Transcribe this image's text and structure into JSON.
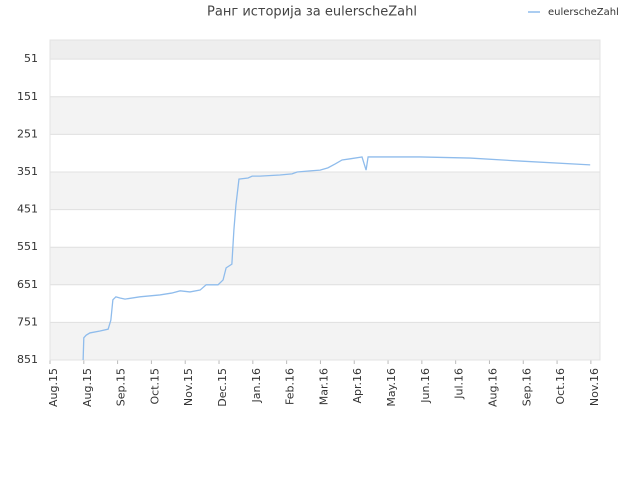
{
  "chart_data": {
    "type": "line",
    "title": "Ранг историја за eulerscheZahl",
    "x": [
      0.98,
      1.0,
      1.07,
      1.18,
      1.48,
      1.72,
      1.8,
      1.86,
      1.95,
      2.07,
      2.22,
      2.66,
      3.25,
      3.6,
      3.85,
      4.14,
      4.44,
      4.62,
      4.97,
      5.12,
      5.21,
      5.38,
      5.44,
      5.5,
      5.59,
      5.86,
      5.98,
      6.21,
      6.8,
      7.16,
      7.31,
      7.69,
      7.99,
      8.22,
      8.43,
      8.64,
      8.88,
      9.23,
      9.35,
      9.41,
      10.95,
      12.43,
      13.91,
      15.98
    ],
    "series": [
      {
        "name": "eulerscheZahl",
        "color": "#8fbcec",
        "values": [
          851,
          792,
          785,
          779,
          774,
          769,
          745,
          691,
          683,
          686,
          689,
          683,
          678,
          673,
          667,
          670,
          665,
          651,
          651,
          638,
          606,
          596,
          505,
          439,
          370,
          367,
          362,
          362,
          359,
          356,
          351,
          348,
          346,
          340,
          330,
          319,
          316,
          311,
          346,
          311,
          311,
          314,
          322,
          332
        ]
      }
    ],
    "xlim": [
      0,
      16.27
    ],
    "xticks": [
      {
        "value": 0,
        "label": "Aug.15"
      },
      {
        "value": 1,
        "label": "Aug.15"
      },
      {
        "value": 2,
        "label": "Sep.15"
      },
      {
        "value": 3,
        "label": "Oct.15"
      },
      {
        "value": 4,
        "label": "Nov.15"
      },
      {
        "value": 5,
        "label": "Dec.15"
      },
      {
        "value": 6,
        "label": "Jan.16"
      },
      {
        "value": 7,
        "label": "Feb.16"
      },
      {
        "value": 8,
        "label": "Mar.16"
      },
      {
        "value": 9,
        "label": "Apr.16"
      },
      {
        "value": 10,
        "label": "May.16"
      },
      {
        "value": 11,
        "label": "Jun.16"
      },
      {
        "value": 12,
        "label": "Jul.16"
      },
      {
        "value": 13,
        "label": "Aug.16"
      },
      {
        "value": 14,
        "label": "Sep.16"
      },
      {
        "value": 15,
        "label": "Oct.16"
      },
      {
        "value": 16,
        "label": "Nov.16"
      }
    ],
    "ylim": [
      851,
      0
    ],
    "yticks": [
      51,
      151,
      251,
      351,
      451,
      551,
      651,
      751,
      851
    ],
    "grid": true,
    "legend": "top-right"
  }
}
